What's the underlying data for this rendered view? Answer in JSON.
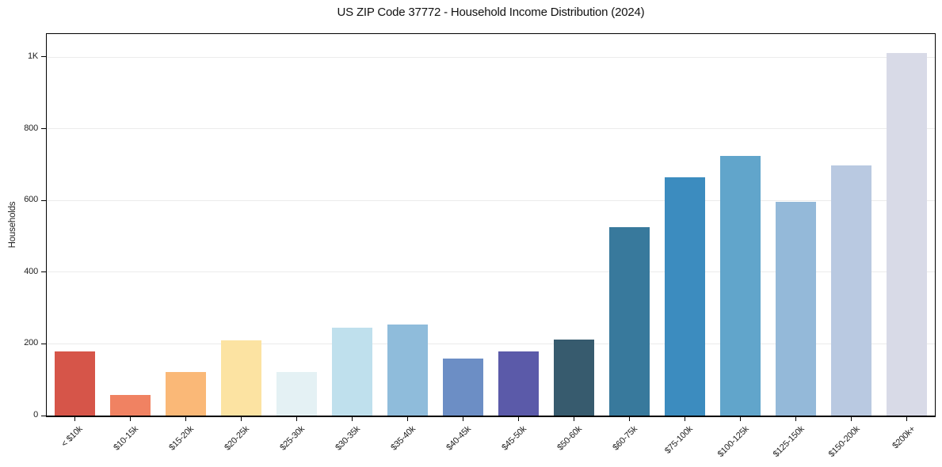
{
  "title": "US ZIP Code 37772 - Household Income Distribution (2024)",
  "colors": {
    "background": "#ffffff",
    "grid": "#ebebeb",
    "axis": "#000000",
    "text": "#222222"
  },
  "chart_data": {
    "type": "bar",
    "title": "US ZIP Code 37772 - Household Income Distribution (2024)",
    "xlabel": "",
    "ylabel": "Households",
    "ylim": [
      0,
      1064
    ],
    "grid": "horizontal",
    "legend": "none",
    "ytick_values": [
      0,
      200,
      400,
      600,
      800,
      1000
    ],
    "ytick_labels": [
      "0",
      "200",
      "400",
      "600",
      "800",
      "1K"
    ],
    "categories": [
      "< $10k",
      "$10-15k",
      "$15-20k",
      "$20-25k",
      "$25-30k",
      "$30-35k",
      "$35-40k",
      "$40-45k",
      "$45-50k",
      "$50-60k",
      "$60-75k",
      "$75-100k",
      "$100-125k",
      "$125-150k",
      "$150-200k",
      "$200k+"
    ],
    "values": [
      178,
      57,
      121,
      209,
      121,
      245,
      254,
      160,
      178,
      211,
      525,
      665,
      725,
      595,
      698,
      1010
    ],
    "bar_colors": [
      "#d65549",
      "#f08262",
      "#fab877",
      "#fce3a2",
      "#e4f1f4",
      "#bfe0ed",
      "#8fbcdb",
      "#6c8ec5",
      "#5b5aa9",
      "#375b6e",
      "#38799c",
      "#3c8cbf",
      "#61a5cb",
      "#94b9d9",
      "#b9c9e1",
      "#d8dae7"
    ]
  }
}
